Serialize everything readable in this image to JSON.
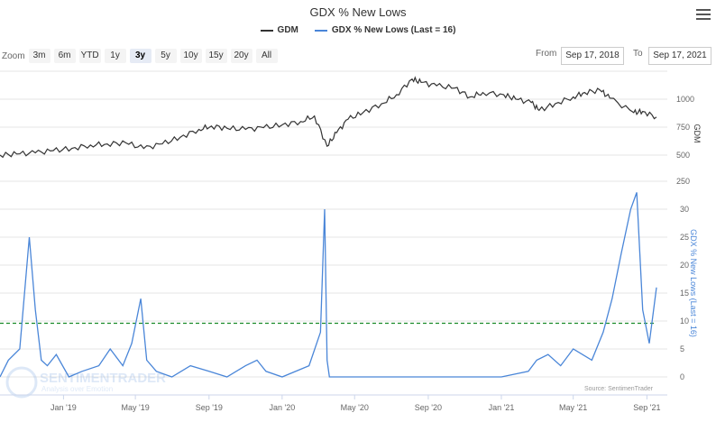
{
  "title": "GDX % New Lows",
  "legend": {
    "items": [
      {
        "label": "GDM",
        "color": "#333333"
      },
      {
        "label": "GDX % New Lows (Last = 16)",
        "color": "#4a86d8"
      }
    ]
  },
  "zoom": {
    "label": "Zoom",
    "buttons": [
      "3m",
      "6m",
      "YTD",
      "1y",
      "3y",
      "5y",
      "10y",
      "15y",
      "20y",
      "All"
    ],
    "active": "3y"
  },
  "range": {
    "from_label": "From",
    "from_value": "Sep 17, 2018",
    "to_label": "To",
    "to_value": "Sep 17, 2021"
  },
  "watermark": {
    "name": "SENTIMENTRADER",
    "tagline": "Analysis over Emotion"
  },
  "source": "Source: SentimenTrader",
  "colors": {
    "gdm": "#333333",
    "newlows": "#4a86d8",
    "threshold": "#1a8a2a",
    "grid": "#e6e6e6"
  },
  "chart_data": [
    {
      "type": "line",
      "series": [
        {
          "name": "GDM",
          "x": [
            "2018-09-17",
            "2018-10-15",
            "2018-11-15",
            "2018-12-15",
            "2019-01-15",
            "2019-02-15",
            "2019-03-15",
            "2019-04-15",
            "2019-05-15",
            "2019-06-15",
            "2019-07-15",
            "2019-08-15",
            "2019-09-05",
            "2019-10-01",
            "2019-11-01",
            "2019-12-01",
            "2020-01-01",
            "2020-02-01",
            "2020-02-24",
            "2020-03-16",
            "2020-04-01",
            "2020-04-20",
            "2020-05-15",
            "2020-06-15",
            "2020-07-10",
            "2020-08-05",
            "2020-08-20",
            "2020-09-15",
            "2020-10-15",
            "2020-11-10",
            "2020-12-01",
            "2021-01-05",
            "2021-01-25",
            "2021-02-20",
            "2021-03-05",
            "2021-04-01",
            "2021-05-01",
            "2021-05-20",
            "2021-06-15",
            "2021-07-01",
            "2021-08-10",
            "2021-08-25",
            "2021-09-17"
          ],
          "values": [
            500,
            510,
            520,
            540,
            560,
            590,
            600,
            610,
            560,
            600,
            660,
            730,
            760,
            740,
            730,
            745,
            770,
            800,
            850,
            580,
            700,
            820,
            880,
            960,
            1040,
            1180,
            1150,
            1120,
            1100,
            1020,
            1060,
            1040,
            1000,
            970,
            900,
            960,
            1020,
            1060,
            1080,
            1010,
            880,
            890,
            840
          ]
        }
      ],
      "ylabel": "GDM",
      "ylim": [
        500,
        1100
      ],
      "yticks": [
        500,
        750,
        1000
      ],
      "xlabels": [
        "Jan '19",
        "May '19",
        "Sep '19",
        "Jan '20",
        "May '20",
        "Sep '20",
        "Jan '21",
        "May '21",
        "Sep '21"
      ]
    },
    {
      "type": "line",
      "series": [
        {
          "name": "GDX % New Lows",
          "x": [
            "2018-09-17",
            "2018-10-01",
            "2018-10-20",
            "2018-11-05",
            "2018-11-15",
            "2018-11-25",
            "2018-12-05",
            "2018-12-20",
            "2019-01-10",
            "2019-02-01",
            "2019-03-01",
            "2019-03-20",
            "2019-04-10",
            "2019-04-25",
            "2019-05-10",
            "2019-05-20",
            "2019-06-05",
            "2019-07-01",
            "2019-08-01",
            "2019-09-01",
            "2019-10-01",
            "2019-11-01",
            "2019-11-20",
            "2019-12-05",
            "2020-01-01",
            "2020-02-15",
            "2020-03-05",
            "2020-03-12",
            "2020-03-16",
            "2020-03-20",
            "2020-04-05",
            "2020-05-01",
            "2020-07-01",
            "2020-09-01",
            "2020-11-01",
            "2021-01-01",
            "2021-02-15",
            "2021-03-01",
            "2021-03-20",
            "2021-04-10",
            "2021-05-01",
            "2021-06-01",
            "2021-06-20",
            "2021-07-05",
            "2021-07-20",
            "2021-08-05",
            "2021-08-15",
            "2021-08-25",
            "2021-09-05",
            "2021-09-17"
          ],
          "values": [
            0,
            3,
            5,
            25,
            12,
            3,
            2,
            4,
            0,
            1,
            2,
            5,
            2,
            6,
            14,
            3,
            1,
            0,
            2,
            1,
            0,
            2,
            3,
            1,
            0,
            2,
            8,
            30,
            3,
            0,
            0,
            0,
            0,
            0,
            0,
            0,
            1,
            3,
            4,
            2,
            5,
            3,
            8,
            14,
            22,
            30,
            33,
            12,
            6,
            16
          ]
        }
      ],
      "ylabel": "GDX % New Lows (Last = 16)",
      "ylim": [
        0,
        25
      ],
      "yticks": [
        0,
        5,
        10,
        15,
        20,
        25,
        30
      ],
      "threshold": 9.6
    }
  ]
}
